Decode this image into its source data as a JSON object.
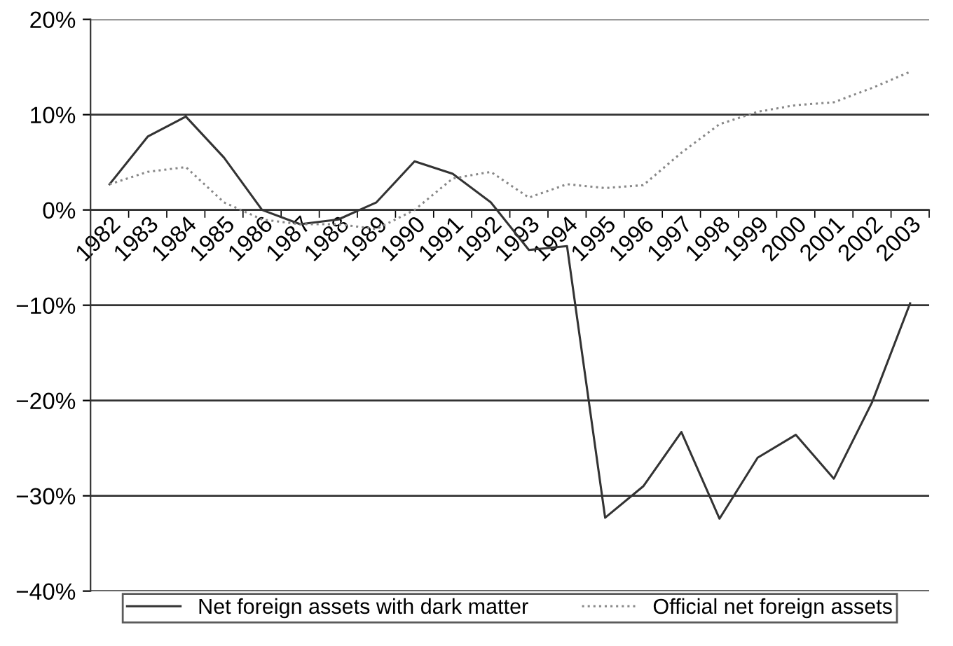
{
  "chart_data": {
    "type": "line",
    "categories": [
      "1982",
      "1983",
      "1984",
      "1985",
      "1986",
      "1987",
      "1988",
      "1989",
      "1990",
      "1991",
      "1992",
      "1993",
      "1994",
      "1995",
      "1996",
      "1997",
      "1998",
      "1999",
      "2000",
      "2001",
      "2002",
      "2003"
    ],
    "series": [
      {
        "name": "Net foreign assets with dark matter",
        "color": "#333333",
        "line_style": "solid",
        "values": [
          2.7,
          7.7,
          9.8,
          5.5,
          0,
          -1.5,
          -1,
          0.8,
          5.1,
          3.8,
          0.8,
          -4.2,
          -3.8,
          -32.3,
          -29,
          -23.3,
          -32.4,
          -26,
          -23.6,
          -28.2,
          -20.2,
          -9.8
        ]
      },
      {
        "name": "Official net foreign assets",
        "color": "#888888",
        "line_style": "dotted",
        "values": [
          2.7,
          4,
          4.5,
          0.8,
          -1,
          -1.5,
          -1.5,
          -2,
          0,
          3.3,
          4,
          1.3,
          2.7,
          2.3,
          2.6,
          6,
          9,
          10.3,
          11,
          11.3,
          12.8,
          14.5
        ]
      }
    ],
    "ylim": [
      -40,
      20
    ],
    "yticks": [
      {
        "value": -40,
        "label": "−40%"
      },
      {
        "value": -30,
        "label": "−30%"
      },
      {
        "value": -20,
        "label": "−20%"
      },
      {
        "value": -10,
        "label": "−10%"
      },
      {
        "value": 0,
        "label": "0%"
      },
      {
        "value": 10,
        "label": "10%"
      },
      {
        "value": 20,
        "label": "20%"
      }
    ],
    "grid": "y",
    "legend": "bottom",
    "marker": "none"
  }
}
